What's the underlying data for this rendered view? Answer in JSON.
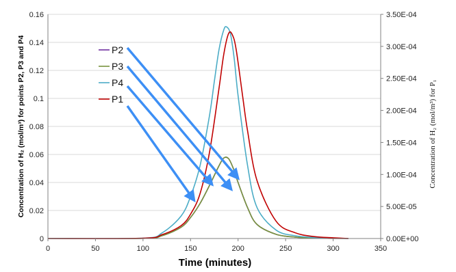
{
  "chart_data": {
    "type": "line",
    "xlabel": "Time (minutes)",
    "ylabel_left": "Concentration of H₂ (mol/m³) for points P2, P3 and P4",
    "ylabel_right": "Concentration of H₂ (mol/m³) for P₁",
    "xlim": [
      0,
      350
    ],
    "ylim_left": [
      0,
      0.16
    ],
    "ylim_right": [
      0,
      0.00035
    ],
    "x_ticks": [
      "0",
      "50",
      "100",
      "150",
      "200",
      "250",
      "300",
      "350"
    ],
    "y_ticks_left": [
      "0",
      "0.02",
      "0.04",
      "0.06",
      "0.08",
      "0.1",
      "0.12",
      "0.14",
      "0.16"
    ],
    "y_ticks_right": [
      "0.00E+00",
      "5.00E-05",
      "1.00E-04",
      "1.50E-04",
      "2.00E-04",
      "2.50E-04",
      "3.00E-04",
      "3.50E-04"
    ],
    "grid": "horizontal",
    "legend_position": "inside-left",
    "legend": [
      "P2",
      "P3",
      "P4",
      "P1"
    ],
    "series": [
      {
        "name": "P2",
        "axis": "left",
        "color": "#7030a0",
        "x": [
          0,
          100,
          120,
          140,
          150,
          160,
          170,
          180,
          185,
          190,
          195,
          200,
          210,
          220,
          240,
          260,
          280,
          300,
          316
        ],
        "y": [
          0,
          0.0001,
          0.002,
          0.008,
          0.015,
          0.025,
          0.038,
          0.052,
          0.0575,
          0.057,
          0.05,
          0.04,
          0.022,
          0.01,
          0.003,
          0.001,
          0.0004,
          0.0001,
          0
        ]
      },
      {
        "name": "P3",
        "axis": "left",
        "color": "#77933c",
        "x": [
          0,
          100,
          120,
          140,
          150,
          160,
          170,
          180,
          185,
          190,
          195,
          200,
          210,
          220,
          240,
          260,
          280,
          300,
          316
        ],
        "y": [
          0,
          0.0001,
          0.002,
          0.008,
          0.015,
          0.025,
          0.038,
          0.052,
          0.0575,
          0.057,
          0.05,
          0.04,
          0.022,
          0.01,
          0.003,
          0.001,
          0.0004,
          0.0001,
          0
        ]
      },
      {
        "name": "P4",
        "axis": "left",
        "color": "#4bacc6",
        "x": [
          0,
          100,
          120,
          140,
          150,
          160,
          170,
          175,
          180,
          185,
          188,
          192,
          196,
          200,
          210,
          220,
          240,
          260,
          280,
          300,
          316
        ],
        "y": [
          0,
          0.0003,
          0.004,
          0.016,
          0.03,
          0.052,
          0.088,
          0.112,
          0.135,
          0.149,
          0.151,
          0.146,
          0.128,
          0.102,
          0.052,
          0.022,
          0.006,
          0.002,
          0.0007,
          0.0003,
          0
        ]
      },
      {
        "name": "P1",
        "axis": "right",
        "color": "#c00000",
        "x": [
          0,
          100,
          120,
          140,
          150,
          160,
          170,
          180,
          185,
          190,
          194,
          198,
          205,
          210,
          220,
          240,
          260,
          280,
          300,
          316
        ],
        "y": [
          0,
          5e-07,
          6e-06,
          2e-05,
          3.8e-05,
          7e-05,
          0.000135,
          0.000235,
          0.000288,
          0.00032,
          0.000318,
          0.000295,
          0.00022,
          0.000168,
          9e-05,
          2.7e-05,
          9e-06,
          3e-06,
          1.2e-06,
          0
        ]
      }
    ]
  }
}
